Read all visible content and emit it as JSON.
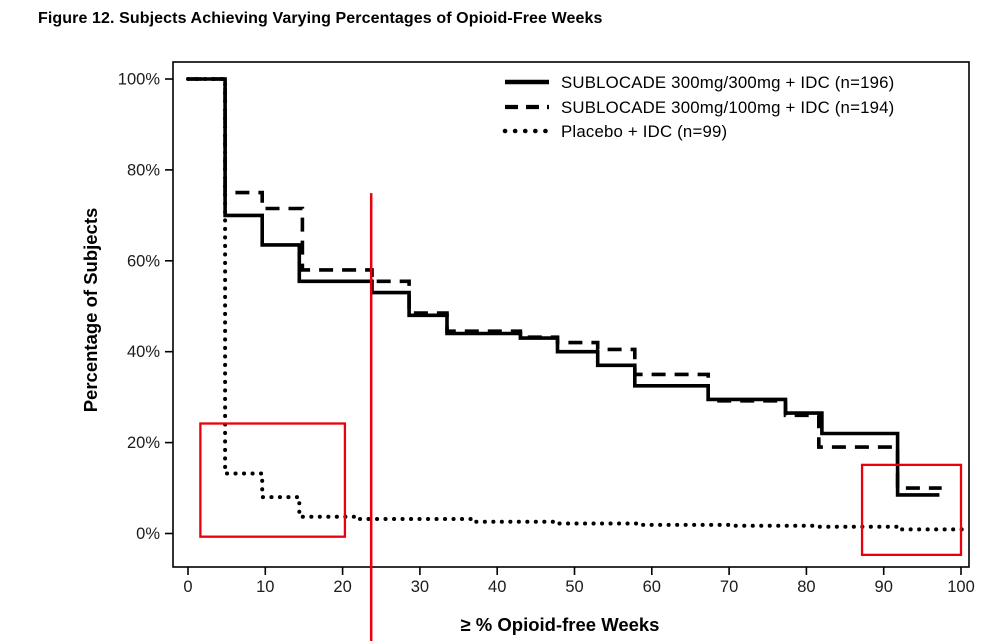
{
  "figure": {
    "title": "Figure 12. Subjects Achieving Varying Percentages of Opioid-Free Weeks"
  },
  "chart_data": {
    "type": "step-line",
    "title": "Figure 12. Subjects Achieving Varying Percentages of Opioid-Free Weeks",
    "xlabel": "≥ % Opioid-free Weeks",
    "ylabel": "Percentage of Subjects",
    "xlim": [
      0,
      100
    ],
    "ylim": [
      0,
      100
    ],
    "x_ticks": [
      0,
      10,
      20,
      30,
      40,
      50,
      60,
      70,
      80,
      90,
      100
    ],
    "y_ticks": [
      0,
      20,
      40,
      60,
      80,
      100
    ],
    "y_tick_suffix": "%",
    "grid": false,
    "legend_position": "top-right",
    "line_color": "#000000",
    "annotation_color": "#e8000d",
    "series": [
      {
        "name": "SUBLOCADE 300mg/300mg + IDC (n=196)",
        "style": "solid",
        "points": [
          [
            0,
            100
          ],
          [
            4.8,
            70
          ],
          [
            9.6,
            63.5
          ],
          [
            14.4,
            55.5
          ],
          [
            23.8,
            53
          ],
          [
            28.6,
            48
          ],
          [
            33.5,
            44
          ],
          [
            43,
            43
          ],
          [
            47.8,
            40
          ],
          [
            53,
            37
          ],
          [
            57.8,
            32.5
          ],
          [
            67.3,
            29.5
          ],
          [
            77.3,
            26.5
          ],
          [
            82,
            22
          ],
          [
            91.8,
            8.5
          ],
          [
            97.2,
            8.5
          ]
        ]
      },
      {
        "name": "SUBLOCADE 300mg/100mg + IDC (n=194)",
        "style": "dashed",
        "points": [
          [
            0,
            100
          ],
          [
            4.8,
            75
          ],
          [
            9.6,
            71.5
          ],
          [
            14.8,
            58
          ],
          [
            23.8,
            55.5
          ],
          [
            28.6,
            48.5
          ],
          [
            33.5,
            44.5
          ],
          [
            43,
            43.2
          ],
          [
            47.8,
            42
          ],
          [
            53,
            40.5
          ],
          [
            57.8,
            35
          ],
          [
            67.3,
            29.2
          ],
          [
            77.3,
            26
          ],
          [
            81.6,
            19
          ],
          [
            91.8,
            10
          ],
          [
            97.5,
            10
          ]
        ]
      },
      {
        "name": "Placebo + IDC (n=99)",
        "style": "dotted",
        "points": [
          [
            0,
            100
          ],
          [
            4.8,
            13.2
          ],
          [
            9.6,
            8
          ],
          [
            14.4,
            3.7
          ],
          [
            22,
            3.2
          ],
          [
            37,
            2.6
          ],
          [
            48,
            2.2
          ],
          [
            58,
            1.9
          ],
          [
            70,
            1.7
          ],
          [
            81,
            1.5
          ],
          [
            91.8,
            0.9
          ],
          [
            100.5,
            0.9
          ]
        ]
      }
    ],
    "annotations": {
      "vline": {
        "x": 23.7,
        "y_top_pct": 74.9,
        "extends_below_axis": true
      },
      "boxes": [
        {
          "x1": 1.6,
          "y1": -0.7,
          "x2": 20.3,
          "y2": 24.2
        },
        {
          "x1": 87.2,
          "y1": -4.7,
          "x2": 100,
          "y2": 15.1
        }
      ]
    }
  }
}
